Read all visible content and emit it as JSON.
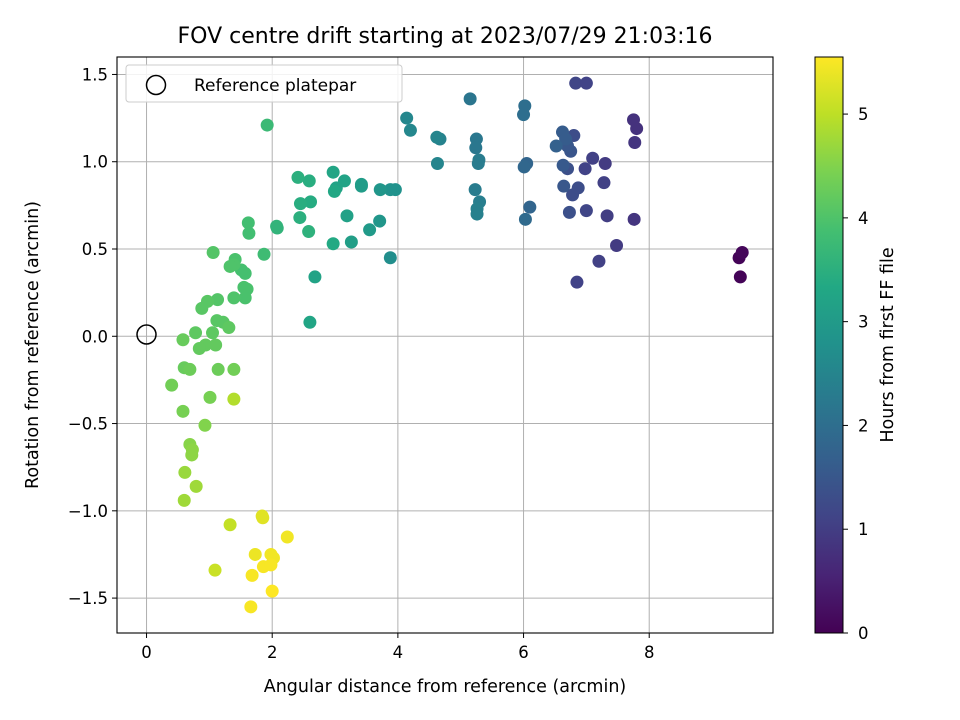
{
  "chart_data": {
    "type": "scatter",
    "title": "FOV centre drift starting at 2023/07/29 21:03:16",
    "xlabel": "Angular distance from reference (arcmin)",
    "ylabel": "Rotation from reference (arcmin)",
    "xlim": [
      -0.47,
      9.97
    ],
    "ylim": [
      -1.7,
      1.6
    ],
    "xticks": [
      0,
      2,
      4,
      6,
      8
    ],
    "xtick_labels": [
      "0",
      "2",
      "4",
      "6",
      "8"
    ],
    "yticks": [
      -1.5,
      -1.0,
      -0.5,
      0.0,
      0.5,
      1.0,
      1.5
    ],
    "ytick_labels": [
      "−1.5",
      "−1.0",
      "−0.5",
      "0.0",
      "0.5",
      "1.0",
      "1.5"
    ],
    "grid": true,
    "legend": {
      "placement": "top-left",
      "entries": [
        "Reference platepar"
      ]
    },
    "colorbar": {
      "label": "Hours from first FF file",
      "colormap": "viridis",
      "range": [
        0,
        5.55
      ],
      "ticks": [
        0,
        1,
        2,
        3,
        4,
        5
      ],
      "tick_labels": [
        "0",
        "1",
        "2",
        "3",
        "4",
        "5"
      ]
    },
    "reference_point": {
      "x": 0,
      "y": 0,
      "name": "Reference platepar"
    },
    "points": [
      {
        "x": 9.45,
        "y": 0.34,
        "h": 0.05
      },
      {
        "x": 9.43,
        "y": 0.45,
        "h": 0.05
      },
      {
        "x": 9.48,
        "y": 0.48,
        "h": 0.1
      },
      {
        "x": 7.8,
        "y": 1.19,
        "h": 0.8
      },
      {
        "x": 7.75,
        "y": 1.24,
        "h": 0.8
      },
      {
        "x": 7.77,
        "y": 1.11,
        "h": 0.85
      },
      {
        "x": 7.76,
        "y": 0.67,
        "h": 0.85
      },
      {
        "x": 7.48,
        "y": 0.52,
        "h": 0.95
      },
      {
        "x": 7.3,
        "y": 0.99,
        "h": 0.95
      },
      {
        "x": 7.1,
        "y": 1.02,
        "h": 1.05
      },
      {
        "x": 7.33,
        "y": 0.69,
        "h": 1.0
      },
      {
        "x": 7.28,
        "y": 0.88,
        "h": 1.05
      },
      {
        "x": 7.2,
        "y": 0.43,
        "h": 1.05
      },
      {
        "x": 6.98,
        "y": 0.96,
        "h": 1.1
      },
      {
        "x": 7.0,
        "y": 0.72,
        "h": 1.15
      },
      {
        "x": 6.85,
        "y": 0.31,
        "h": 1.1
      },
      {
        "x": 6.83,
        "y": 1.45,
        "h": 1.15
      },
      {
        "x": 7.0,
        "y": 1.45,
        "h": 1.1
      },
      {
        "x": 6.8,
        "y": 1.15,
        "h": 1.3
      },
      {
        "x": 6.78,
        "y": 0.81,
        "h": 1.3
      },
      {
        "x": 6.87,
        "y": 0.85,
        "h": 1.3
      },
      {
        "x": 6.73,
        "y": 0.71,
        "h": 1.35
      },
      {
        "x": 6.7,
        "y": 0.96,
        "h": 1.35
      },
      {
        "x": 6.64,
        "y": 0.86,
        "h": 1.5
      },
      {
        "x": 6.75,
        "y": 1.06,
        "h": 1.45
      },
      {
        "x": 6.63,
        "y": 0.98,
        "h": 1.55
      },
      {
        "x": 6.7,
        "y": 1.09,
        "h": 1.5
      },
      {
        "x": 6.62,
        "y": 1.17,
        "h": 1.6
      },
      {
        "x": 6.67,
        "y": 1.13,
        "h": 1.6
      },
      {
        "x": 6.52,
        "y": 1.09,
        "h": 1.7
      },
      {
        "x": 6.1,
        "y": 0.74,
        "h": 1.8
      },
      {
        "x": 6.05,
        "y": 0.99,
        "h": 1.8
      },
      {
        "x": 6.01,
        "y": 0.97,
        "h": 1.85
      },
      {
        "x": 6.03,
        "y": 0.67,
        "h": 1.9
      },
      {
        "x": 6.02,
        "y": 1.32,
        "h": 2.0
      },
      {
        "x": 6.0,
        "y": 1.27,
        "h": 2.0
      },
      {
        "x": 5.15,
        "y": 1.36,
        "h": 2.15
      },
      {
        "x": 5.25,
        "y": 1.13,
        "h": 2.2
      },
      {
        "x": 5.24,
        "y": 1.08,
        "h": 2.2
      },
      {
        "x": 5.29,
        "y": 1.01,
        "h": 2.3
      },
      {
        "x": 5.28,
        "y": 0.99,
        "h": 2.3
      },
      {
        "x": 5.23,
        "y": 0.84,
        "h": 2.3
      },
      {
        "x": 5.3,
        "y": 0.77,
        "h": 2.35
      },
      {
        "x": 5.26,
        "y": 0.73,
        "h": 2.4
      },
      {
        "x": 5.26,
        "y": 0.7,
        "h": 2.4
      },
      {
        "x": 4.67,
        "y": 1.13,
        "h": 2.45
      },
      {
        "x": 4.62,
        "y": 1.14,
        "h": 2.5
      },
      {
        "x": 4.63,
        "y": 0.99,
        "h": 2.5
      },
      {
        "x": 4.2,
        "y": 1.18,
        "h": 2.55
      },
      {
        "x": 4.14,
        "y": 1.25,
        "h": 2.55
      },
      {
        "x": 3.88,
        "y": 0.45,
        "h": 2.7
      },
      {
        "x": 3.96,
        "y": 0.84,
        "h": 2.8
      },
      {
        "x": 3.88,
        "y": 0.84,
        "h": 2.8
      },
      {
        "x": 3.72,
        "y": 0.84,
        "h": 2.9
      },
      {
        "x": 3.71,
        "y": 0.66,
        "h": 2.9
      },
      {
        "x": 3.55,
        "y": 0.61,
        "h": 3.0
      },
      {
        "x": 3.42,
        "y": 0.87,
        "h": 3.05
      },
      {
        "x": 3.42,
        "y": 0.86,
        "h": 3.05
      },
      {
        "x": 3.26,
        "y": 0.54,
        "h": 3.1
      },
      {
        "x": 3.19,
        "y": 0.69,
        "h": 3.15
      },
      {
        "x": 3.15,
        "y": 0.89,
        "h": 3.2
      },
      {
        "x": 3.02,
        "y": 0.85,
        "h": 3.2
      },
      {
        "x": 2.97,
        "y": 0.94,
        "h": 3.25
      },
      {
        "x": 2.99,
        "y": 0.83,
        "h": 3.3
      },
      {
        "x": 2.97,
        "y": 0.53,
        "h": 3.35
      },
      {
        "x": 2.68,
        "y": 0.34,
        "h": 3.2
      },
      {
        "x": 2.6,
        "y": 0.08,
        "h": 3.25
      },
      {
        "x": 2.61,
        "y": 0.77,
        "h": 3.4
      },
      {
        "x": 2.45,
        "y": 0.76,
        "h": 3.45
      },
      {
        "x": 2.59,
        "y": 0.89,
        "h": 3.45
      },
      {
        "x": 2.41,
        "y": 0.91,
        "h": 3.5
      },
      {
        "x": 2.44,
        "y": 0.68,
        "h": 3.5
      },
      {
        "x": 2.58,
        "y": 0.6,
        "h": 3.55
      },
      {
        "x": 2.08,
        "y": 0.62,
        "h": 3.6
      },
      {
        "x": 2.07,
        "y": 0.63,
        "h": 3.6
      },
      {
        "x": 1.92,
        "y": 1.21,
        "h": 3.75
      },
      {
        "x": 1.87,
        "y": 0.47,
        "h": 3.8
      },
      {
        "x": 1.62,
        "y": 0.65,
        "h": 3.85
      },
      {
        "x": 1.63,
        "y": 0.59,
        "h": 3.85
      },
      {
        "x": 1.57,
        "y": 0.36,
        "h": 3.9
      },
      {
        "x": 1.51,
        "y": 0.38,
        "h": 3.9
      },
      {
        "x": 1.6,
        "y": 0.27,
        "h": 3.95
      },
      {
        "x": 1.55,
        "y": 0.28,
        "h": 3.95
      },
      {
        "x": 1.57,
        "y": 0.22,
        "h": 3.95
      },
      {
        "x": 1.41,
        "y": 0.44,
        "h": 3.95
      },
      {
        "x": 1.39,
        "y": 0.41,
        "h": 4.0
      },
      {
        "x": 1.33,
        "y": 0.4,
        "h": 4.0
      },
      {
        "x": 1.39,
        "y": 0.22,
        "h": 4.0
      },
      {
        "x": 1.06,
        "y": 0.48,
        "h": 4.05
      },
      {
        "x": 1.13,
        "y": 0.21,
        "h": 4.05
      },
      {
        "x": 0.97,
        "y": 0.2,
        "h": 4.1
      },
      {
        "x": 0.88,
        "y": 0.16,
        "h": 4.1
      },
      {
        "x": 1.12,
        "y": 0.09,
        "h": 4.1
      },
      {
        "x": 1.22,
        "y": 0.08,
        "h": 4.1
      },
      {
        "x": 1.31,
        "y": 0.05,
        "h": 4.15
      },
      {
        "x": 1.05,
        "y": 0.02,
        "h": 4.15
      },
      {
        "x": 0.78,
        "y": 0.02,
        "h": 4.15
      },
      {
        "x": 0.94,
        "y": -0.05,
        "h": 4.2
      },
      {
        "x": 1.1,
        "y": -0.05,
        "h": 4.2
      },
      {
        "x": 0.84,
        "y": -0.07,
        "h": 4.2
      },
      {
        "x": 0.58,
        "y": -0.02,
        "h": 4.25
      },
      {
        "x": 0.6,
        "y": -0.18,
        "h": 4.25
      },
      {
        "x": 0.69,
        "y": -0.19,
        "h": 4.3
      },
      {
        "x": 1.14,
        "y": -0.19,
        "h": 4.3
      },
      {
        "x": 1.39,
        "y": -0.19,
        "h": 4.35
      },
      {
        "x": 0.4,
        "y": -0.28,
        "h": 4.35
      },
      {
        "x": 1.01,
        "y": -0.35,
        "h": 4.4
      },
      {
        "x": 0.58,
        "y": -0.43,
        "h": 4.4
      },
      {
        "x": 0.93,
        "y": -0.51,
        "h": 4.5
      },
      {
        "x": 0.69,
        "y": -0.62,
        "h": 4.55
      },
      {
        "x": 0.73,
        "y": -0.65,
        "h": 4.6
      },
      {
        "x": 0.72,
        "y": -0.68,
        "h": 4.6
      },
      {
        "x": 0.61,
        "y": -0.78,
        "h": 4.7
      },
      {
        "x": 0.79,
        "y": -0.86,
        "h": 4.75
      },
      {
        "x": 0.6,
        "y": -0.94,
        "h": 4.75
      },
      {
        "x": 1.39,
        "y": -0.36,
        "h": 4.9
      },
      {
        "x": 1.33,
        "y": -1.08,
        "h": 5.05
      },
      {
        "x": 1.09,
        "y": -1.34,
        "h": 5.1
      },
      {
        "x": 1.84,
        "y": -1.03,
        "h": 5.3
      },
      {
        "x": 1.85,
        "y": -1.04,
        "h": 5.3
      },
      {
        "x": 2.24,
        "y": -1.15,
        "h": 5.45
      },
      {
        "x": 1.73,
        "y": -1.25,
        "h": 5.4
      },
      {
        "x": 1.98,
        "y": -1.25,
        "h": 5.45
      },
      {
        "x": 2.02,
        "y": -1.27,
        "h": 5.45
      },
      {
        "x": 1.86,
        "y": -1.32,
        "h": 5.5
      },
      {
        "x": 1.98,
        "y": -1.31,
        "h": 5.5
      },
      {
        "x": 1.68,
        "y": -1.37,
        "h": 5.5
      },
      {
        "x": 2.0,
        "y": -1.46,
        "h": 5.55
      },
      {
        "x": 1.66,
        "y": -1.55,
        "h": 5.5
      }
    ]
  }
}
